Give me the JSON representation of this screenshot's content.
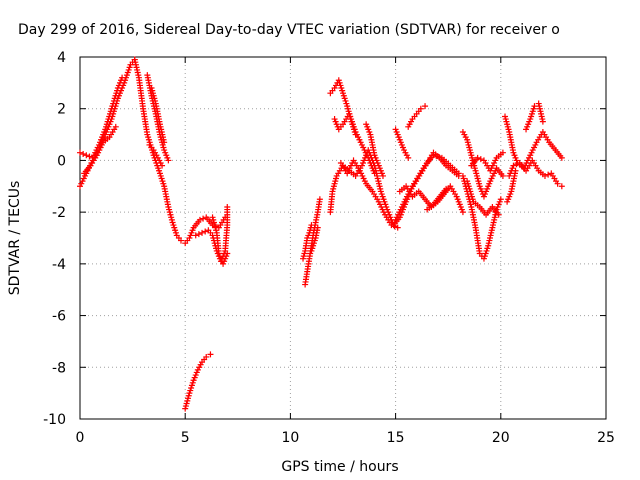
{
  "chart_data": {
    "type": "scatter",
    "title": "Day 299 of 2016, Sidereal Day-to-day VTEC variation (SDTVAR) for receiver o",
    "xlabel": "GPS time / hours",
    "ylabel": "SDTVAR / TECUs",
    "xlim": [
      0,
      25
    ],
    "ylim": [
      -10,
      4
    ],
    "x_ticks": [
      0,
      5,
      10,
      15,
      20,
      25
    ],
    "y_ticks": [
      -10,
      -8,
      -6,
      -4,
      -2,
      0,
      2,
      4
    ],
    "grid": true,
    "legend": "none",
    "marker": "+",
    "color": "#ff0000",
    "segments": [
      {
        "points": [
          [
            0,
            -1.0
          ],
          [
            0.3,
            -0.5
          ],
          [
            0.6,
            0.0
          ],
          [
            0.9,
            0.4
          ],
          [
            1.2,
            1.0
          ],
          [
            1.5,
            1.6
          ],
          [
            1.8,
            2.4
          ],
          [
            2.1,
            3.0
          ],
          [
            2.4,
            3.7
          ],
          [
            2.6,
            3.9
          ]
        ]
      },
      {
        "points": [
          [
            0,
            0.3
          ],
          [
            0.3,
            0.2
          ],
          [
            0.6,
            0.1
          ],
          [
            0.9,
            0.6
          ],
          [
            1.2,
            1.2
          ],
          [
            1.5,
            2.0
          ],
          [
            1.8,
            2.8
          ],
          [
            2.0,
            3.2
          ]
        ]
      },
      {
        "points": [
          [
            0.2,
            -0.5
          ],
          [
            0.5,
            -0.2
          ],
          [
            0.8,
            0.2
          ],
          [
            1.1,
            0.7
          ],
          [
            1.4,
            0.9
          ],
          [
            1.7,
            1.3
          ]
        ]
      },
      {
        "points": [
          [
            2.6,
            3.9
          ],
          [
            2.8,
            3.2
          ],
          [
            3.0,
            2.0
          ],
          [
            3.2,
            1.0
          ],
          [
            3.5,
            0.2
          ],
          [
            3.8,
            -0.5
          ],
          [
            4.0,
            -1.0
          ],
          [
            4.2,
            -1.8
          ],
          [
            4.4,
            -2.4
          ],
          [
            4.6,
            -2.9
          ],
          [
            4.8,
            -3.1
          ],
          [
            5.0,
            -3.2
          ],
          [
            5.2,
            -3.0
          ],
          [
            5.4,
            -2.6
          ],
          [
            5.7,
            -2.3
          ],
          [
            6.0,
            -2.2
          ],
          [
            6.3,
            -2.5
          ],
          [
            6.6,
            -2.6
          ],
          [
            6.9,
            -2.2
          ]
        ]
      },
      {
        "points": [
          [
            3.2,
            3.3
          ],
          [
            3.4,
            2.5
          ],
          [
            3.6,
            1.8
          ],
          [
            3.8,
            1.0
          ],
          [
            4.0,
            0.4
          ],
          [
            4.2,
            0.0
          ]
        ]
      },
      {
        "points": [
          [
            3.4,
            2.8
          ],
          [
            3.6,
            2.2
          ],
          [
            3.8,
            1.4
          ],
          [
            4.0,
            0.7
          ]
        ]
      },
      {
        "points": [
          [
            3.3,
            0.6
          ],
          [
            3.5,
            0.4
          ],
          [
            3.7,
            0.1
          ],
          [
            3.9,
            -0.2
          ]
        ]
      },
      {
        "points": [
          [
            5.5,
            -2.9
          ],
          [
            5.8,
            -2.8
          ],
          [
            6.1,
            -2.7
          ],
          [
            6.3,
            -2.9
          ],
          [
            6.5,
            -3.5
          ],
          [
            6.7,
            -3.9
          ],
          [
            6.9,
            -3.5
          ],
          [
            7.0,
            -2.5
          ],
          [
            7.0,
            -1.8
          ]
        ]
      },
      {
        "points": [
          [
            6.3,
            -2.2
          ],
          [
            6.5,
            -2.8
          ],
          [
            6.6,
            -3.6
          ],
          [
            6.8,
            -4.0
          ],
          [
            7.0,
            -3.6
          ]
        ]
      },
      {
        "points": [
          [
            5.0,
            -9.6
          ],
          [
            5.2,
            -9.0
          ],
          [
            5.4,
            -8.5
          ],
          [
            5.6,
            -8.1
          ],
          [
            5.8,
            -7.8
          ],
          [
            6.0,
            -7.6
          ],
          [
            6.2,
            -7.5
          ]
        ]
      },
      {
        "points": [
          [
            10.7,
            -4.8
          ],
          [
            10.8,
            -4.3
          ],
          [
            10.9,
            -3.8
          ],
          [
            11.0,
            -3.3
          ],
          [
            11.1,
            -2.8
          ],
          [
            11.2,
            -2.4
          ],
          [
            11.3,
            -2.0
          ],
          [
            11.4,
            -1.5
          ]
        ]
      },
      {
        "points": [
          [
            10.6,
            -3.8
          ],
          [
            10.7,
            -3.5
          ],
          [
            10.8,
            -3.0
          ],
          [
            10.9,
            -2.8
          ],
          [
            11.0,
            -2.5
          ]
        ]
      },
      {
        "points": [
          [
            11.0,
            -3.5
          ],
          [
            11.2,
            -3.0
          ],
          [
            11.3,
            -2.6
          ]
        ]
      },
      {
        "points": [
          [
            11.9,
            -2.0
          ],
          [
            12.0,
            -1.2
          ],
          [
            12.2,
            -0.6
          ],
          [
            12.5,
            -0.2
          ],
          [
            12.8,
            -0.4
          ],
          [
            13.1,
            -0.6
          ],
          [
            13.4,
            -0.2
          ],
          [
            13.7,
            0.4
          ],
          [
            14.0,
            -0.2
          ],
          [
            14.3,
            -1.2
          ],
          [
            14.6,
            -1.9
          ],
          [
            14.9,
            -2.5
          ],
          [
            15.2,
            -2.2
          ],
          [
            15.5,
            -1.6
          ],
          [
            15.8,
            -1.0
          ],
          [
            16.1,
            -0.6
          ],
          [
            16.4,
            -0.2
          ],
          [
            16.8,
            0.2
          ],
          [
            17.2,
            0.1
          ],
          [
            17.6,
            -0.2
          ],
          [
            18.0,
            -0.5
          ]
        ]
      },
      {
        "points": [
          [
            11.9,
            2.6
          ],
          [
            12.1,
            2.8
          ],
          [
            12.3,
            3.1
          ],
          [
            12.5,
            2.6
          ],
          [
            12.7,
            2.1
          ],
          [
            12.9,
            1.5
          ],
          [
            13.1,
            1.0
          ]
        ]
      },
      {
        "points": [
          [
            12.1,
            1.6
          ],
          [
            12.3,
            1.2
          ],
          [
            12.5,
            1.4
          ],
          [
            12.8,
            1.8
          ],
          [
            13.1,
            1.1
          ],
          [
            13.4,
            0.6
          ],
          [
            13.7,
            0.1
          ],
          [
            14.0,
            -0.5
          ]
        ]
      },
      {
        "points": [
          [
            13.6,
            1.4
          ],
          [
            13.8,
            1.0
          ],
          [
            14.0,
            0.2
          ],
          [
            14.2,
            -0.2
          ],
          [
            14.4,
            -0.6
          ]
        ]
      },
      {
        "points": [
          [
            12.4,
            -0.1
          ],
          [
            12.7,
            -0.5
          ],
          [
            13.0,
            0.0
          ],
          [
            13.3,
            -0.4
          ],
          [
            13.6,
            -0.9
          ],
          [
            13.9,
            -1.2
          ],
          [
            14.2,
            -1.6
          ],
          [
            14.5,
            -2.1
          ],
          [
            14.8,
            -2.5
          ],
          [
            15.1,
            -2.6
          ]
        ]
      },
      {
        "points": [
          [
            15.0,
            -2.3
          ],
          [
            15.3,
            -1.8
          ],
          [
            15.6,
            -1.3
          ],
          [
            15.9,
            -0.9
          ],
          [
            16.2,
            -0.5
          ],
          [
            16.5,
            -0.1
          ],
          [
            16.8,
            0.3
          ],
          [
            17.1,
            0.1
          ],
          [
            17.4,
            -0.2
          ],
          [
            17.7,
            -0.4
          ],
          [
            18.0,
            -0.6
          ]
        ]
      },
      {
        "points": [
          [
            15.0,
            1.2
          ],
          [
            15.2,
            0.8
          ],
          [
            15.4,
            0.4
          ],
          [
            15.6,
            0.1
          ]
        ]
      },
      {
        "points": [
          [
            15.6,
            1.3
          ],
          [
            15.8,
            1.6
          ],
          [
            16.0,
            1.8
          ],
          [
            16.2,
            2.0
          ],
          [
            16.4,
            2.1
          ]
        ]
      },
      {
        "points": [
          [
            15.2,
            -1.2
          ],
          [
            15.5,
            -1.0
          ],
          [
            15.8,
            -1.4
          ],
          [
            16.1,
            -1.2
          ],
          [
            16.4,
            -1.5
          ],
          [
            16.7,
            -1.8
          ],
          [
            17.0,
            -1.6
          ],
          [
            17.3,
            -1.3
          ],
          [
            17.6,
            -1.0
          ],
          [
            17.9,
            -1.4
          ],
          [
            18.2,
            -2.0
          ]
        ]
      },
      {
        "points": [
          [
            16.5,
            -1.9
          ],
          [
            16.8,
            -1.7
          ],
          [
            17.1,
            -1.4
          ],
          [
            17.4,
            -1.1
          ]
        ]
      },
      {
        "points": [
          [
            18.2,
            1.1
          ],
          [
            18.4,
            0.8
          ],
          [
            18.6,
            0.2
          ],
          [
            18.8,
            -0.4
          ],
          [
            19.0,
            -1.0
          ],
          [
            19.2,
            -1.4
          ],
          [
            19.5,
            -0.8
          ],
          [
            19.8,
            -0.3
          ],
          [
            20.1,
            -0.6
          ]
        ]
      },
      {
        "points": [
          [
            18.2,
            -0.6
          ],
          [
            18.4,
            -1.2
          ],
          [
            18.6,
            -1.8
          ],
          [
            18.8,
            -2.6
          ],
          [
            19.0,
            -3.6
          ],
          [
            19.2,
            -3.8
          ],
          [
            19.4,
            -3.3
          ],
          [
            19.6,
            -2.6
          ],
          [
            19.8,
            -1.9
          ],
          [
            20.0,
            -1.5
          ]
        ]
      },
      {
        "points": [
          [
            18.4,
            -0.8
          ],
          [
            18.7,
            -1.6
          ],
          [
            19.0,
            -1.8
          ],
          [
            19.3,
            -2.1
          ],
          [
            19.6,
            -1.8
          ],
          [
            19.9,
            -2.1
          ]
        ]
      },
      {
        "points": [
          [
            18.6,
            -0.2
          ],
          [
            18.9,
            0.1
          ],
          [
            19.2,
            0.0
          ],
          [
            19.5,
            -0.4
          ],
          [
            19.8,
            0.1
          ],
          [
            20.1,
            0.3
          ]
        ]
      },
      {
        "points": [
          [
            20.2,
            1.7
          ],
          [
            20.4,
            1.1
          ],
          [
            20.6,
            0.3
          ],
          [
            20.8,
            -0.1
          ],
          [
            21.1,
            -0.3
          ],
          [
            21.4,
            0.2
          ],
          [
            21.7,
            0.7
          ],
          [
            22.0,
            1.1
          ],
          [
            22.3,
            0.7
          ],
          [
            22.6,
            0.4
          ],
          [
            22.9,
            0.1
          ]
        ]
      },
      {
        "points": [
          [
            20.4,
            -0.6
          ],
          [
            20.6,
            -0.2
          ],
          [
            20.9,
            -0.1
          ],
          [
            21.2,
            -0.4
          ],
          [
            21.5,
            0.0
          ],
          [
            21.8,
            -0.4
          ],
          [
            22.1,
            -0.6
          ],
          [
            22.4,
            -0.5
          ],
          [
            22.7,
            -0.9
          ],
          [
            22.9,
            -1.0
          ]
        ]
      },
      {
        "points": [
          [
            20.3,
            -1.6
          ],
          [
            20.5,
            -1.2
          ],
          [
            20.7,
            -0.4
          ]
        ]
      },
      {
        "points": [
          [
            21.2,
            1.2
          ],
          [
            21.4,
            1.6
          ],
          [
            21.6,
            2.1
          ],
          [
            21.8,
            2.2
          ],
          [
            22.0,
            1.5
          ]
        ]
      }
    ]
  }
}
